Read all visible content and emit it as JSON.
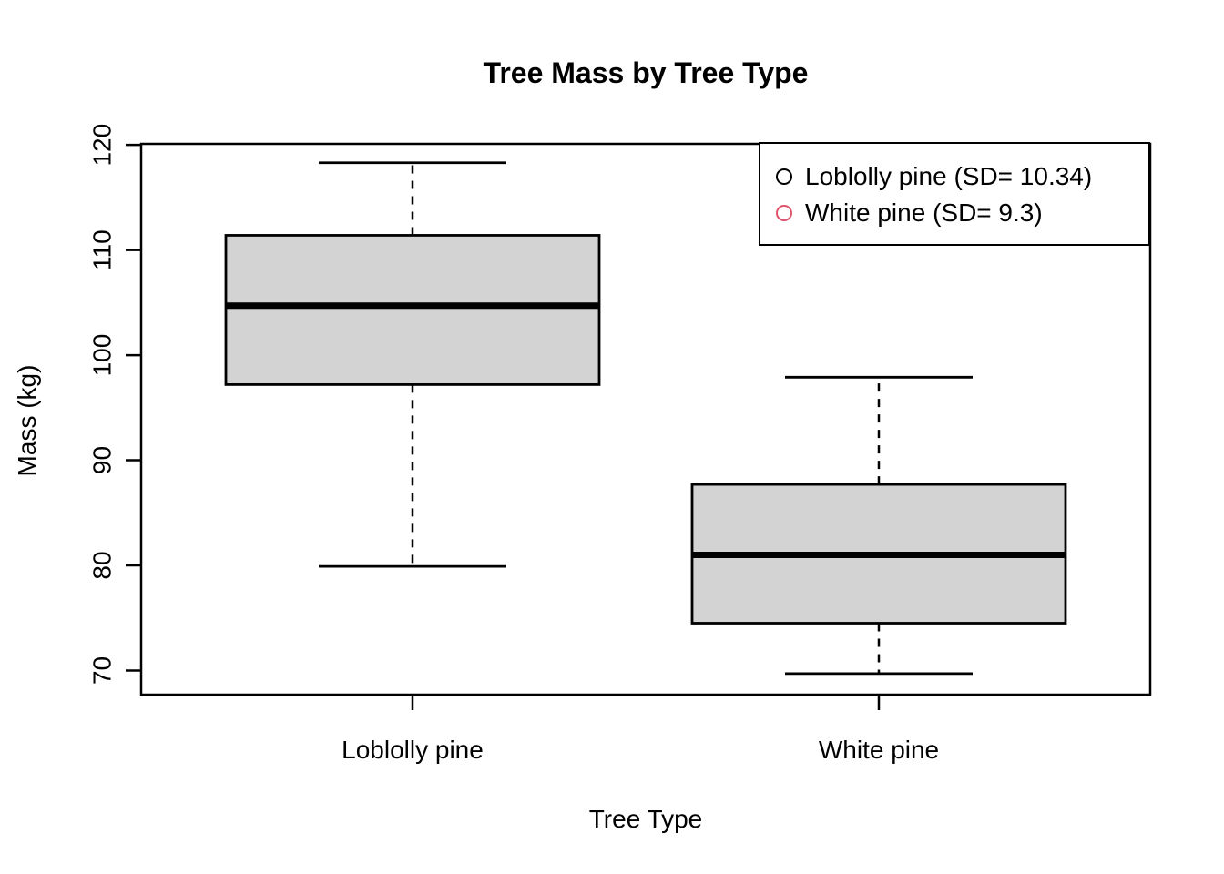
{
  "title": "Tree Mass by Tree Type",
  "chart_data": {
    "type": "boxplot",
    "title": "Tree Mass by Tree Type",
    "xlabel": "Tree Type",
    "ylabel": "Mass (kg)",
    "categories": [
      "Loblolly pine",
      "White pine"
    ],
    "y_ticks": [
      70,
      80,
      90,
      100,
      110,
      120
    ],
    "ylim": [
      67.7,
      120.1
    ],
    "grid": false,
    "series": [
      {
        "name": "Loblolly pine",
        "sd": 10.34,
        "whisker_low": 79.9,
        "q1": 97.2,
        "median": 104.7,
        "q3": 111.4,
        "whisker_high": 118.3
      },
      {
        "name": "White pine",
        "sd": 9.3,
        "whisker_low": 69.7,
        "q1": 74.5,
        "median": 81.0,
        "q3": 87.7,
        "whisker_high": 97.9
      }
    ],
    "legend": {
      "position": "topright",
      "items": [
        {
          "label": "Loblolly pine (SD= 10.34)",
          "marker": "open-circle",
          "color": "#000000"
        },
        {
          "label": "White pine (SD= 9.3)",
          "marker": "open-circle",
          "color": "#DF536B"
        }
      ]
    },
    "colors": {
      "box_fill": "#D3D3D3",
      "stroke": "#000000",
      "background": "#FFFFFF"
    }
  }
}
